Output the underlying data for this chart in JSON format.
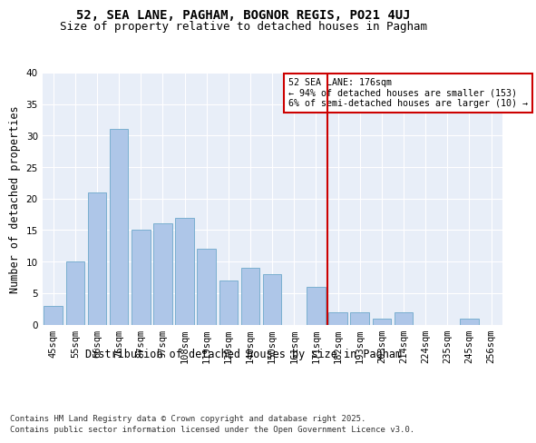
{
  "title1": "52, SEA LANE, PAGHAM, BOGNOR REGIS, PO21 4UJ",
  "title2": "Size of property relative to detached houses in Pagham",
  "xlabel": "Distribution of detached houses by size in Pagham",
  "ylabel": "Number of detached properties",
  "categories": [
    "45sqm",
    "55sqm",
    "66sqm",
    "76sqm",
    "87sqm",
    "97sqm",
    "108sqm",
    "119sqm",
    "129sqm",
    "140sqm",
    "150sqm",
    "161sqm",
    "171sqm",
    "182sqm",
    "193sqm",
    "203sqm",
    "214sqm",
    "224sqm",
    "235sqm",
    "245sqm",
    "256sqm"
  ],
  "values": [
    3,
    10,
    21,
    31,
    15,
    16,
    17,
    12,
    7,
    9,
    8,
    0,
    6,
    2,
    2,
    1,
    2,
    0,
    0,
    1,
    0
  ],
  "bar_color": "#aec6e8",
  "bar_edge_color": "#7aafd0",
  "vline_x": 12.5,
  "vline_color": "#cc0000",
  "annotation_title": "52 SEA LANE: 176sqm",
  "annotation_line1": "← 94% of detached houses are smaller (153)",
  "annotation_line2": "6% of semi-detached houses are larger (10) →",
  "annotation_box_color": "#cc0000",
  "ylim": [
    0,
    40
  ],
  "yticks": [
    0,
    5,
    10,
    15,
    20,
    25,
    30,
    35,
    40
  ],
  "background_color": "#e8eef8",
  "footer1": "Contains HM Land Registry data © Crown copyright and database right 2025.",
  "footer2": "Contains public sector information licensed under the Open Government Licence v3.0.",
  "title_fontsize": 10,
  "subtitle_fontsize": 9,
  "axis_label_fontsize": 8.5,
  "tick_fontsize": 7.5,
  "footer_fontsize": 6.5
}
